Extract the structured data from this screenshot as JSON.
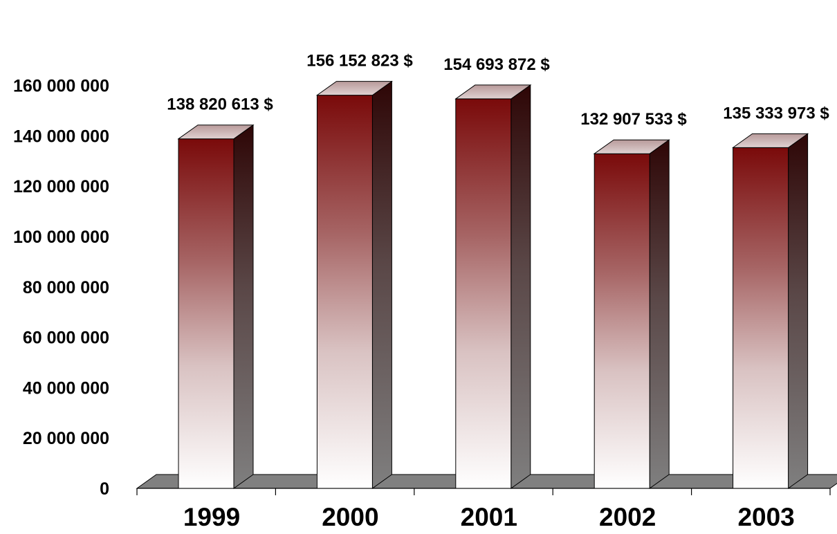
{
  "chart_data": {
    "type": "bar",
    "categories": [
      "1999",
      "2000",
      "2001",
      "2002",
      "2003"
    ],
    "values": [
      138820613,
      156152823,
      154693872,
      132907533,
      135333973
    ],
    "value_labels": [
      "138 820 613 $",
      "156 152 823 $",
      "154 693 872 $",
      "132 907 533 $",
      "135 333 973 $"
    ],
    "y_ticks": [
      "0",
      "20 000 000",
      "40 000 000",
      "60 000 000",
      "80 000 000",
      "100 000 000",
      "120 000 000",
      "140 000 000",
      "160 000 000"
    ],
    "ylim": [
      0,
      160000000
    ],
    "title": "",
    "xlabel": "",
    "ylabel": "",
    "grid": false,
    "legend": "none",
    "style": "3d-column",
    "colors": {
      "bar_top": "#7a0a0a",
      "bar_bottom": "#ffffff",
      "bar_side_top": "#2e0606",
      "bar_side_bottom": "#7f7f7f",
      "floor": "#808080"
    }
  }
}
